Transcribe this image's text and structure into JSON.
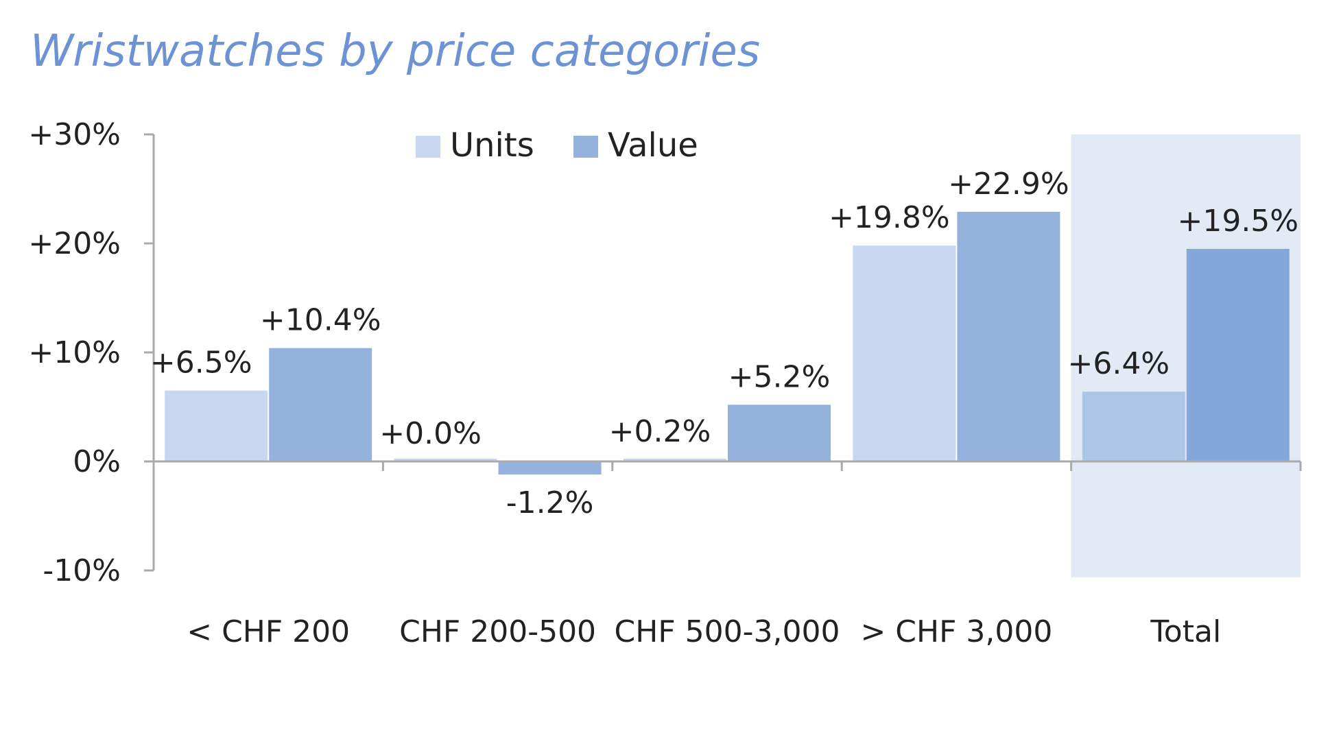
{
  "chart_data": {
    "type": "bar",
    "title": "Wristwatches by price categories",
    "categories": [
      "< CHF 200",
      "CHF 200-500",
      "CHF 500-3,000",
      "> CHF 3,000",
      "Total"
    ],
    "series": [
      {
        "name": "Units",
        "values": [
          6.5,
          0.0,
          0.2,
          19.8,
          6.4
        ],
        "labels": [
          "+6.5%",
          "+0.0%",
          "+0.2%",
          "+19.8%",
          "+6.4%"
        ],
        "color": "#c7d7ef"
      },
      {
        "name": "Value",
        "values": [
          10.4,
          -1.2,
          5.2,
          22.9,
          19.5
        ],
        "labels": [
          "+10.4%",
          "-1.2%",
          "+5.2%",
          "+22.9%",
          "+19.5%"
        ],
        "color": "#95b2df"
      }
    ],
    "highlight": {
      "category": "Total",
      "background": "#e1eaf5",
      "series_colors": [
        "#aec6e6",
        "#85a8da"
      ]
    },
    "ylim": [
      -10,
      30
    ],
    "yticks": [
      -10,
      0,
      10,
      20,
      30
    ],
    "ytick_labels": [
      "-10%",
      "0%",
      "+10%",
      "+20%",
      "+30%"
    ],
    "legend_position": "top",
    "grid": false,
    "xlabel": "",
    "ylabel": ""
  }
}
